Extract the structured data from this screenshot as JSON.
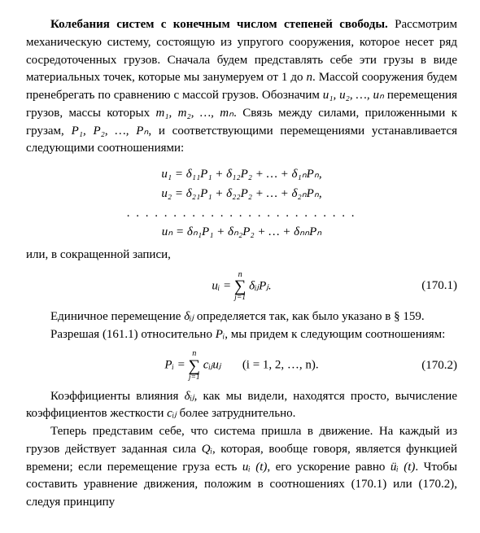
{
  "heading": "Колебания систем с конечным числом степеней свободы.",
  "p1": " Рассмотрим механическую систему, состоящую из упругого сооружения, которое несет ряд сосредоточенных грузов. Сначала будем представлять себе эти грузы в виде материальных точек, которые мы занумеруем от 1 до ",
  "p1_n": "n",
  "p1b": ". Массой сооружения будем пренебрегать по сравнению с массой грузов. Обозначим ",
  "p1_u": "u₁, u₂, …, uₙ",
  "p1c": " перемещения грузов, массы которых ",
  "p1_m": "m₁, m₂, …, mₙ",
  "p1d": ". Связь между силами, приложенными к грузам, ",
  "p1_P": "P₁, P₂, …, Pₙ",
  "p1e": ", и соответствующими перемещениями устанавливается следующими соотношениями:",
  "eq_sys": {
    "l1": "u₁ = δ₁₁P₁ + δ₁₂P₂ + … + δ₁ₙPₙ,",
    "l2": "u₂ = δ₂₁P₁ + δ₂₂P₂ + … + δ₂ₙPₙ,",
    "dots": ". . . . . . . . . . . . . . . . . . . . . . . . .",
    "l3": "uₙ = δₙ₁P₁ + δₙ₂P₂ + … + δₙₙPₙ"
  },
  "p2": "или, в сокращенной записи,",
  "eq1": {
    "lhs": "uᵢ =",
    "sum_top": "n",
    "sum_bot": "j=1",
    "rhs": " δᵢⱼPⱼ.",
    "num": "(170.1)"
  },
  "p3a": "Единичное перемещение ",
  "p3_d": "δᵢⱼ",
  "p3b": " определяется так, как было указано в § 159.",
  "p4a": "Разрешая (161.1) относительно ",
  "p4_P": "Pᵢ",
  "p4b": ", мы придем к следующим соотношениям:",
  "eq2": {
    "lhs": "Pᵢ =",
    "sum_top": "n",
    "sum_bot": "j=1",
    "rhs": " cᵢⱼuⱼ",
    "cond": "(i = 1, 2, …, n).",
    "num": "(170.2)"
  },
  "p5a": "Коэффициенты влияния ",
  "p5_d": "δᵢⱼ",
  "p5b": ", как мы видели, находятся просто, вычисление коэффициентов жесткости ",
  "p5_c": "cᵢⱼ",
  "p5c": " более затруднительно.",
  "p6a": "Теперь представим себе, что система пришла в движение. На каждый из грузов действует заданная сила ",
  "p6_Q": "Qᵢ",
  "p6b": ", которая, вообще говоря, является функцией времени; если перемещение груза есть ",
  "p6_u": "uᵢ (t)",
  "p6c": ", его ускорение равно ",
  "p6_udd": "üᵢ (t)",
  "p6d": ". Чтобы составить уравнение движения, положим в соотношениях (170.1) или (170.2), следуя принципу"
}
